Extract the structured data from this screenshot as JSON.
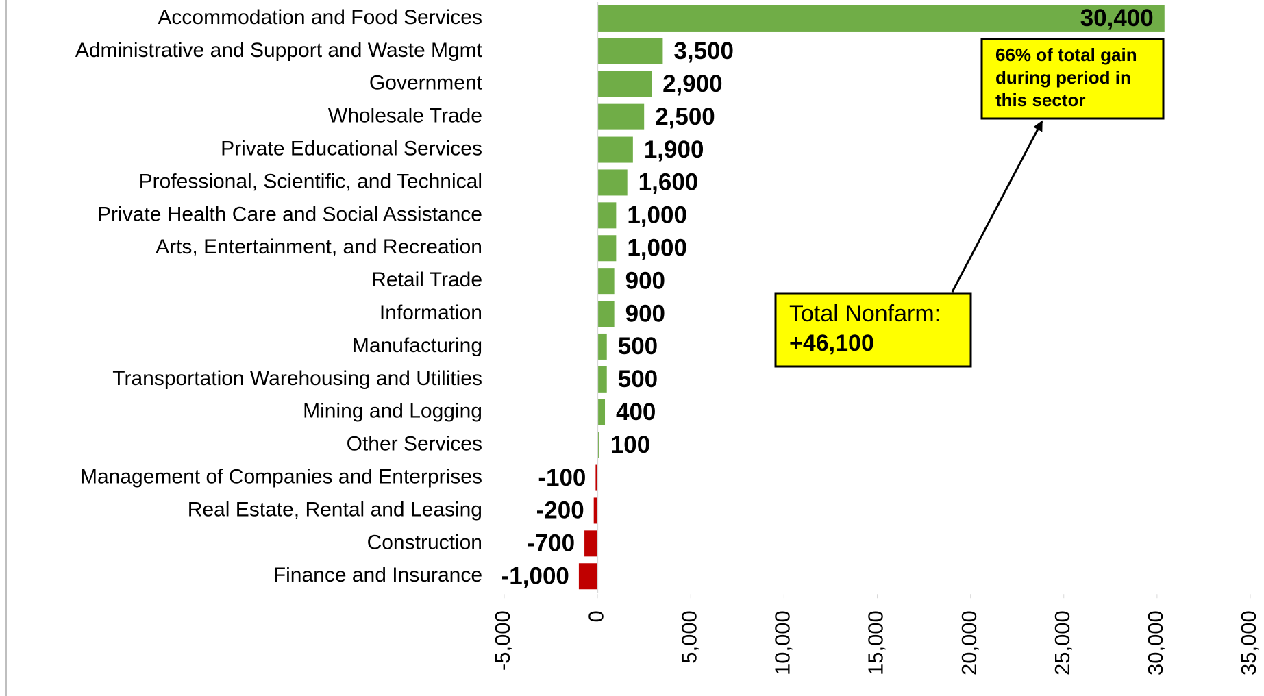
{
  "chart_data": {
    "type": "bar",
    "orientation": "horizontal",
    "categories": [
      "Accommodation and Food Services",
      "Administrative and Support and Waste Mgmt",
      "Government",
      "Wholesale Trade",
      "Private Educational Services",
      "Professional, Scientific, and Technical",
      "Private Health Care and Social Assistance",
      "Arts, Entertainment, and Recreation",
      "Retail Trade",
      "Information",
      "Manufacturing",
      "Transportation Warehousing and Utilities",
      "Mining and Logging",
      "Other Services",
      "Management of Companies and Enterprises",
      "Real Estate, Rental and Leasing",
      "Construction",
      "Finance and Insurance"
    ],
    "values": [
      30400,
      3500,
      2900,
      2500,
      1900,
      1600,
      1000,
      1000,
      900,
      900,
      500,
      500,
      400,
      100,
      -100,
      -200,
      -700,
      -1000
    ],
    "value_labels": [
      "30,400",
      "3,500",
      "2,900",
      "2,500",
      "1,900",
      "1,600",
      "1,000",
      "1,000",
      "900",
      "900",
      "500",
      "500",
      "400",
      "100",
      "-100",
      "-200",
      "-700",
      "-1,000"
    ],
    "color": "#70ad47",
    "negative_color": "#c00000",
    "xlim": [
      -5000,
      35000
    ],
    "xticks": [
      {
        "value": -5000,
        "label": "-5,000"
      },
      0,
      {
        "value": 5000,
        "label": "5,000"
      },
      {
        "value": 10000,
        "label": "10,000"
      },
      {
        "value": 15000,
        "label": "15,000"
      },
      {
        "value": 20000,
        "label": "20,000"
      },
      {
        "value": 25000,
        "label": "25,000"
      },
      {
        "value": 30000,
        "label": "30,000"
      },
      {
        "value": 35000,
        "label": "35,000"
      }
    ],
    "grid": false,
    "annotations": [
      {
        "lines": [
          "66% of total gain",
          "during period in",
          "this sector"
        ]
      },
      {
        "lines": [
          "Total Nonfarm:",
          "+46,100"
        ]
      }
    ]
  }
}
